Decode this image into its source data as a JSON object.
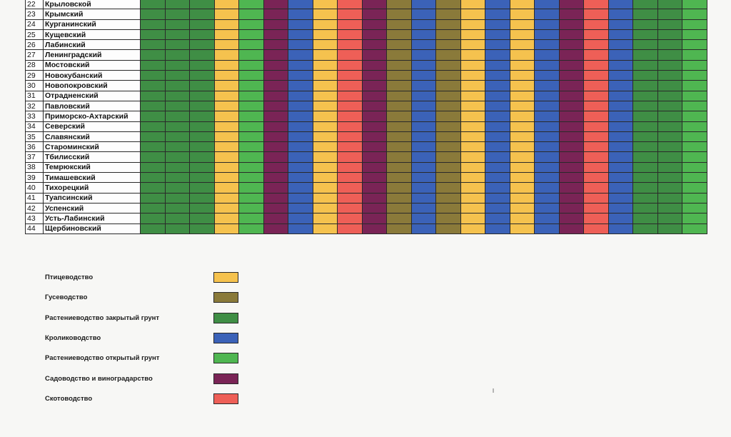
{
  "rows": [
    {
      "num": "22",
      "name": "Крыловской"
    },
    {
      "num": "23",
      "name": "Крымский"
    },
    {
      "num": "24",
      "name": "Курганинский"
    },
    {
      "num": "25",
      "name": "Кущевский"
    },
    {
      "num": "26",
      "name": "Лабинский"
    },
    {
      "num": "27",
      "name": "Ленинградский"
    },
    {
      "num": "28",
      "name": "Мостовский"
    },
    {
      "num": "29",
      "name": "Новокубанский"
    },
    {
      "num": "30",
      "name": "Новопокровский"
    },
    {
      "num": "31",
      "name": "Отрадненский"
    },
    {
      "num": "32",
      "name": "Павловский"
    },
    {
      "num": "33",
      "name": "Приморско-Ахтарский"
    },
    {
      "num": "34",
      "name": "Северский"
    },
    {
      "num": "35",
      "name": "Славянский"
    },
    {
      "num": "36",
      "name": "Староминский"
    },
    {
      "num": "37",
      "name": "Тбилисский"
    },
    {
      "num": "38",
      "name": "Темрюкский"
    },
    {
      "num": "39",
      "name": "Тимашевский"
    },
    {
      "num": "40",
      "name": "Тихорецкий"
    },
    {
      "num": "41",
      "name": "Туапсинский"
    },
    {
      "num": "42",
      "name": "Успенский"
    },
    {
      "num": "43",
      "name": "Усть-Лабинский"
    },
    {
      "num": "44",
      "name": "Щербиновский"
    }
  ],
  "columns": [
    "closed",
    "closed",
    "closed",
    "poultry",
    "open",
    "garden",
    "rabbit",
    "poultry",
    "cattle",
    "garden",
    "goose",
    "rabbit",
    "goose",
    "poultry",
    "rabbit",
    "poultry",
    "rabbit",
    "garden",
    "cattle",
    "rabbit",
    "closed",
    "closed",
    "open"
  ],
  "colors": {
    "poultry": "#f5c24e",
    "goose": "#8a7a3a",
    "closed": "#3f8e45",
    "rabbit": "#3b62b8",
    "open": "#4fb651",
    "garden": "#7a2456",
    "cattle": "#ee5f57"
  },
  "legend": [
    {
      "key": "poultry",
      "label": "Птицеводство"
    },
    {
      "key": "goose",
      "label": "Гусеводство"
    },
    {
      "key": "closed",
      "label": "Растениеводство закрытый грунт"
    },
    {
      "key": "rabbit",
      "label": "Кролиководство"
    },
    {
      "key": "open",
      "label": "Растениеводство открытый грунт"
    },
    {
      "key": "garden",
      "label": "Садоводство и виноградарство"
    },
    {
      "key": "cattle",
      "label": "Скотоводство"
    }
  ]
}
